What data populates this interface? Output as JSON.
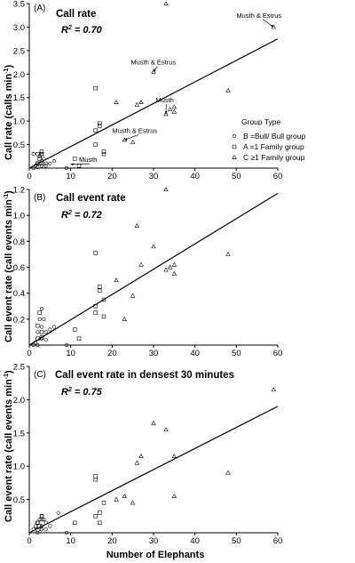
{
  "chart_data": [
    {
      "type": "scatter",
      "panel_label": "(A)",
      "title": "Call rate",
      "r2_label": "R",
      "r2_value": " = 0.70",
      "ylabel": "Call rate (calls min",
      "ylabel_sup": "-1",
      "ylabel_end": ")",
      "xlabel": "",
      "xlim": [
        0,
        60
      ],
      "ylim": [
        0,
        3.5
      ],
      "xticks": [
        0,
        10,
        20,
        30,
        40,
        50,
        60
      ],
      "yticks": [
        0.5,
        1.0,
        1.5,
        2.0,
        2.5,
        3.0,
        3.5
      ],
      "ytick_labels": [
        "0.5",
        "1.0",
        "1.5",
        "2.0",
        "2.5",
        "3.0",
        "3.5"
      ],
      "fit_line": {
        "x": [
          0,
          60
        ],
        "y": [
          0.0,
          2.75
        ]
      },
      "series": [
        {
          "name": "B =Bull/ Bull group",
          "marker": "circle",
          "x": [
            1,
            1.5,
            2,
            2.5,
            3,
            3,
            3.5,
            4,
            4,
            5,
            6,
            1,
            2,
            3,
            9
          ],
          "y": [
            0.0,
            0.05,
            0.1,
            0.25,
            0.3,
            0.15,
            0.2,
            0.1,
            0.05,
            0.1,
            0.15,
            0.3,
            0.02,
            0.05,
            0.0
          ]
        },
        {
          "name": "A =1 Family group",
          "marker": "square",
          "x": [
            2,
            2,
            2.5,
            3,
            3,
            3,
            11,
            12,
            16,
            16,
            16,
            17,
            17,
            18,
            18
          ],
          "y": [
            0.3,
            0.1,
            0.2,
            0.35,
            0.3,
            0.1,
            0.2,
            0.05,
            1.7,
            0.5,
            0.8,
            0.9,
            0.95,
            0.35,
            0.3
          ]
        },
        {
          "name": "C ≥1 Family group",
          "marker": "triangle",
          "x": [
            21,
            23,
            25,
            26,
            27,
            30,
            33,
            33,
            34,
            35,
            35,
            48,
            59
          ],
          "y": [
            1.4,
            0.6,
            0.55,
            1.35,
            1.4,
            2.05,
            1.15,
            3.5,
            1.25,
            1.2,
            1.3,
            1.65,
            3.0
          ]
        }
      ],
      "annotations": [
        {
          "text": "Musth & Estrus",
          "x": 50,
          "y": 3.2,
          "ax": 59,
          "ay": 3.0
        },
        {
          "text": "Musth & Estrus",
          "x": 24.5,
          "y": 2.2,
          "ax": 30,
          "ay": 2.05
        },
        {
          "text": "Musth",
          "x": 30.5,
          "y": 1.4,
          "ax": 33,
          "ay": 1.15
        },
        {
          "text": "Musth & Estrus",
          "x": 20,
          "y": 0.75,
          "ax": 23,
          "ay": 0.6
        },
        {
          "text": "Musth",
          "x": 12,
          "y": 0.13,
          "ax": 10,
          "ay": 0.08
        }
      ],
      "legend": {
        "title": "Group Type",
        "placement": "right"
      }
    },
    {
      "type": "scatter",
      "panel_label": "(B)",
      "title": "Call event rate",
      "r2_label": "R",
      "r2_value": " = 0.72",
      "ylabel": "Call event rate (call events  min",
      "ylabel_sup": "-1",
      "ylabel_end": ")",
      "xlabel": "",
      "xlim": [
        0,
        60
      ],
      "ylim": [
        0,
        1.2
      ],
      "xticks": [
        0,
        10,
        20,
        30,
        40,
        50,
        60
      ],
      "yticks": [
        0.2,
        0.4,
        0.6,
        0.8,
        1.0,
        1.2
      ],
      "ytick_labels": [
        "0.2",
        "0.4",
        "0.6",
        "0.8",
        "1.0",
        "1.2"
      ],
      "fit_line": {
        "x": [
          0,
          60
        ],
        "y": [
          0.0,
          1.17
        ]
      },
      "series": [
        {
          "name": "B =Bull/ Bull group",
          "marker": "circle",
          "x": [
            1,
            1.5,
            2,
            2.5,
            3,
            3,
            3.5,
            4,
            4,
            5,
            6,
            2,
            3,
            9
          ],
          "y": [
            0.0,
            0.02,
            0.1,
            0.2,
            0.28,
            0.14,
            0.2,
            0.1,
            0.04,
            0.12,
            0.14,
            0.0,
            0.05,
            0.0
          ]
        },
        {
          "name": "A =1 Family group",
          "marker": "square",
          "x": [
            2,
            2,
            2.5,
            3,
            3,
            11,
            12,
            16,
            16,
            16,
            17,
            17,
            18,
            18
          ],
          "y": [
            0.15,
            0.05,
            0.25,
            0.06,
            0.1,
            0.12,
            0.05,
            0.71,
            0.25,
            0.3,
            0.42,
            0.45,
            0.35,
            0.22
          ]
        },
        {
          "name": "C ≥1 Family group",
          "marker": "triangle",
          "x": [
            21,
            23,
            25,
            26,
            27,
            30,
            33,
            33,
            34,
            35,
            35,
            48
          ],
          "y": [
            0.5,
            0.2,
            0.38,
            0.92,
            0.62,
            0.76,
            0.58,
            1.2,
            0.6,
            0.55,
            0.62,
            0.7
          ]
        }
      ]
    },
    {
      "type": "scatter",
      "panel_label": "(C)",
      "title": "Call event rate in densest 30 minutes",
      "r2_label": "R",
      "r2_value": " = 0.75",
      "ylabel": "Call event rate (call events  min",
      "ylabel_sup": "-1",
      "ylabel_end": ")",
      "xlabel": "Number of Elephants",
      "xlim": [
        0,
        60
      ],
      "ylim": [
        0,
        2.5
      ],
      "xticks": [
        0,
        10,
        20,
        30,
        40,
        50,
        60
      ],
      "yticks": [
        0.5,
        1.0,
        1.5,
        2.0,
        2.5
      ],
      "ytick_labels": [
        "0.5",
        "1.0",
        "1.5",
        "2.0",
        "2.5"
      ],
      "fit_line": {
        "x": [
          0,
          60
        ],
        "y": [
          0.0,
          1.9
        ]
      },
      "series": [
        {
          "name": "B =Bull/ Bull group",
          "marker": "circle",
          "x": [
            1,
            1.5,
            2,
            2.5,
            3,
            3,
            3.5,
            4,
            4,
            5,
            7,
            2,
            3,
            9
          ],
          "y": [
            0.05,
            0.1,
            0.15,
            0.2,
            0.25,
            0.1,
            0.2,
            0.15,
            0.05,
            0.1,
            0.3,
            0.0,
            0.05,
            0.0
          ]
        },
        {
          "name": "A =1 Family group",
          "marker": "square",
          "x": [
            2,
            2,
            2.5,
            3,
            3,
            11,
            16,
            16,
            16,
            17,
            17,
            18
          ],
          "y": [
            0.05,
            0.15,
            0.1,
            0.25,
            0.2,
            0.15,
            0.85,
            0.8,
            0.25,
            0.3,
            0.15,
            0.45
          ]
        },
        {
          "name": "C ≥1 Family group",
          "marker": "triangle",
          "x": [
            21,
            23,
            25,
            26,
            27,
            30,
            33,
            35,
            35,
            48,
            59
          ],
          "y": [
            0.5,
            0.55,
            0.45,
            1.05,
            1.15,
            1.65,
            1.55,
            1.15,
            0.55,
            0.9,
            2.15
          ]
        }
      ]
    }
  ]
}
